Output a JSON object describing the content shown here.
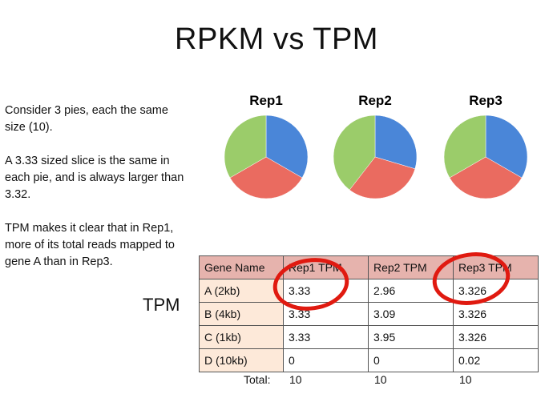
{
  "title": "RPKM vs TPM",
  "side_text": [
    "Consider 3 pies, each the same size (10).",
    "A 3.33 sized slice is the same in each pie, and is always larger than 3.32.",
    "TPM makes it clear that in Rep1, more of its total reads mapped to gene A than in Rep3."
  ],
  "tpm_label": "TPM",
  "colors": {
    "blue": "#4a86d8",
    "red": "#ea6b60",
    "green": "#9bcc6a",
    "header": "#e6b3ad",
    "rowhead": "#fde9d9",
    "highlight": "#e01a10"
  },
  "chart_data": [
    {
      "type": "pie",
      "title": "Rep1",
      "series": [
        {
          "values": [
            3.33,
            3.33,
            3.33
          ]
        }
      ]
    },
    {
      "type": "pie",
      "title": "Rep2",
      "series": [
        {
          "values": [
            2.96,
            3.09,
            3.95
          ]
        }
      ]
    },
    {
      "type": "pie",
      "title": "Rep3",
      "series": [
        {
          "values": [
            3.326,
            3.326,
            3.326
          ]
        }
      ]
    },
    {
      "type": "table",
      "columns": [
        "Gene Name",
        "Rep1 TPM",
        "Rep2 TPM",
        "Rep3 TPM"
      ],
      "rows": [
        [
          "A (2kb)",
          "3.33",
          "2.96",
          "3.326"
        ],
        [
          "B (4kb)",
          "3.33",
          "3.09",
          "3.326"
        ],
        [
          "C (1kb)",
          "3.33",
          "3.95",
          "3.326"
        ],
        [
          "D (10kb)",
          "0",
          "0",
          "0.02"
        ]
      ],
      "totals_label": "Total:",
      "totals": [
        "10",
        "10",
        "10"
      ],
      "highlighted_cells": [
        "A (2kb) Rep1 TPM",
        "A (2kb) Rep3 TPM"
      ]
    }
  ]
}
